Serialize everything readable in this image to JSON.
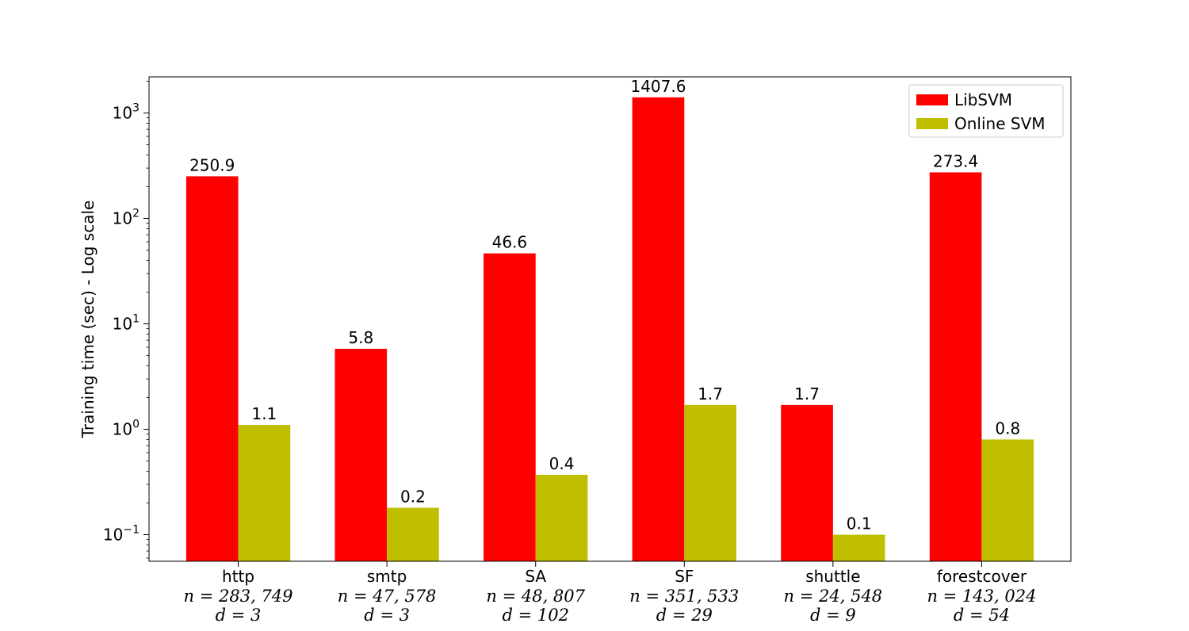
{
  "chart_data": {
    "type": "bar",
    "ylabel": "Training time (sec) - Log scale",
    "yscale": "log",
    "ylim": [
      0.056,
      2200
    ],
    "yticks": [
      {
        "value": 0.1,
        "base": "10",
        "exp": "−1"
      },
      {
        "value": 1,
        "base": "10",
        "exp": "0"
      },
      {
        "value": 10,
        "base": "10",
        "exp": "1"
      },
      {
        "value": 100,
        "base": "10",
        "exp": "2"
      },
      {
        "value": 1000,
        "base": "10",
        "exp": "3"
      }
    ],
    "categories": [
      {
        "name": "http",
        "n": "n = 283, 749",
        "d": "d = 3"
      },
      {
        "name": "smtp",
        "n": "n = 47, 578",
        "d": "d = 3"
      },
      {
        "name": "SA",
        "n": "n = 48, 807",
        "d": "d = 102"
      },
      {
        "name": "SF",
        "n": "n = 351, 533",
        "d": "d = 29"
      },
      {
        "name": "shuttle",
        "n": "n = 24, 548",
        "d": "d = 9"
      },
      {
        "name": "forestcover",
        "n": "n = 143, 024",
        "d": "d = 54"
      }
    ],
    "series": [
      {
        "name": "LibSVM",
        "color": "#ff0000",
        "values": [
          250.9,
          5.8,
          46.6,
          1407.6,
          1.7,
          273.4
        ],
        "labels": [
          "250.9",
          "5.8",
          "46.6",
          "1407.6",
          "1.7",
          "273.4"
        ]
      },
      {
        "name": "Online SVM",
        "color": "#bfbf00",
        "values": [
          1.1,
          0.18,
          0.37,
          1.7,
          0.1,
          0.8
        ],
        "labels": [
          "1.1",
          "0.2",
          "0.4",
          "1.7",
          "0.1",
          "0.8"
        ]
      }
    ],
    "legend_position": "top-right",
    "grid": false
  }
}
